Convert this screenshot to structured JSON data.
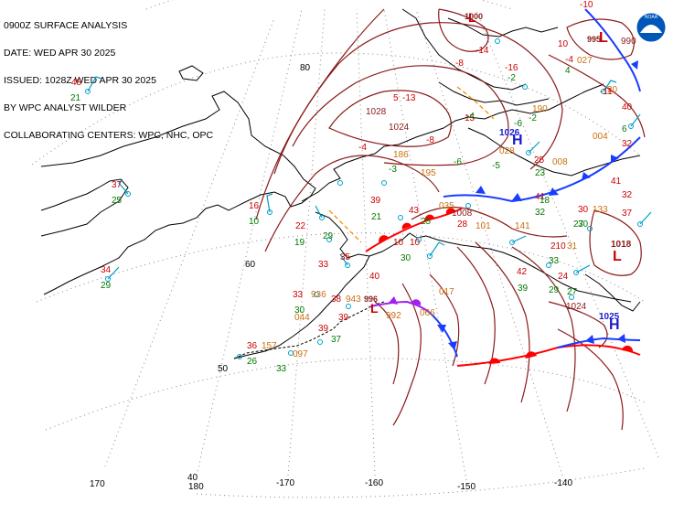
{
  "header": {
    "line1": "0900Z SURFACE ANALYSIS",
    "line2": "DATE: WED APR 30 2025",
    "line3": "ISSUED: 1028Z WED APR 30 2025",
    "line4": "BY WPC ANALYST WILDER",
    "line5": "COLLABORATING CENTERS: WPC, NHC, OPC"
  },
  "logo": {
    "name": "noaa-logo",
    "text": "NOAA"
  },
  "graticule": {
    "lat_labels": [
      "80",
      "60",
      "50",
      "40"
    ],
    "lon_labels": [
      "170",
      "180",
      "-170",
      "-160",
      "-150",
      "-140"
    ]
  },
  "colors": {
    "isobar": "#8b1a1a",
    "temperature": "#cc0000",
    "dewpoint": "#007a00",
    "pressure_value": "#c87010",
    "wind": "#00a0c8",
    "cold_front": "#1a3cff",
    "warm_front": "#ff0000",
    "occluded_front": "#a020f0",
    "trough": "#ff8c00",
    "high": "#1a1acc",
    "low": "#cc0000",
    "coast": "#000000"
  },
  "pressure_centers": [
    {
      "type": "H",
      "value": "1026"
    },
    {
      "type": "H",
      "value": "1025"
    },
    {
      "type": "L",
      "value": "1018"
    },
    {
      "type": "L",
      "value": "996"
    },
    {
      "type": "L",
      "value": "995"
    },
    {
      "type": "L",
      "value": "1000"
    }
  ],
  "isobar_labels": [
    "1028",
    "1024",
    "1008",
    "1024",
    "990"
  ],
  "station_labels": [
    "48",
    "21",
    "37",
    "25",
    "34",
    "29",
    "16",
    "10",
    "19",
    "29",
    "33",
    "35",
    "33",
    "30",
    "936",
    "38",
    "943",
    "39",
    "992",
    "39",
    "37",
    "36",
    "157",
    "26",
    "33",
    "097",
    "40",
    "10",
    "22",
    "21",
    "39",
    "43",
    "10",
    "30",
    "28",
    "32",
    "41",
    "30",
    "25",
    "23",
    "41",
    "30",
    "42",
    "33",
    "24",
    "39",
    "29",
    "27",
    "210",
    "31",
    "40",
    "6",
    "-5",
    "-4",
    "-8",
    "15",
    "-6",
    "-4",
    "028",
    "-4",
    "-16",
    "-10",
    "10",
    "-14",
    "-2",
    "20",
    "004",
    "-6",
    "37",
    "190",
    "-13",
    "-2",
    "25",
    "008",
    "027",
    "32",
    "035",
    "017",
    "066",
    "044",
    "133",
    "101",
    "5",
    "-3",
    "141",
    "195",
    "-8",
    "-11",
    "4",
    "186",
    "27",
    "18",
    "32"
  ]
}
